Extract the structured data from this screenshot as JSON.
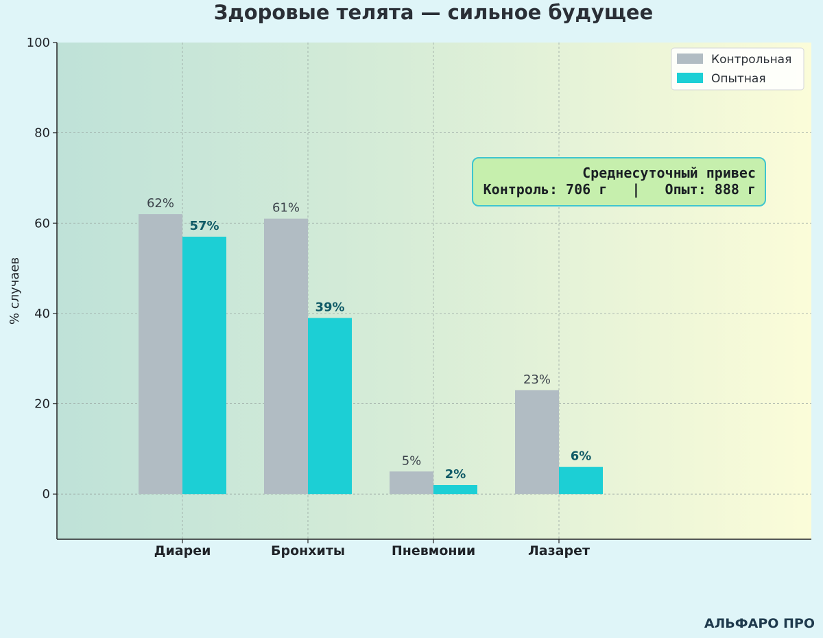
{
  "chart_data": {
    "type": "bar",
    "title": "Здоровые телята — сильное будущее",
    "ylabel": "% случаев",
    "xlabel": "",
    "ylim": [
      -10,
      100
    ],
    "yticks": [
      0,
      20,
      40,
      60,
      80,
      100
    ],
    "grid": true,
    "legend_position": "top-right",
    "categories": [
      "Диареи",
      "Бронхиты",
      "Пневмонии",
      "Лазарет"
    ],
    "series": [
      {
        "name": "Контрольная",
        "values": [
          62,
          61,
          5,
          23
        ],
        "labels": [
          "62%",
          "61%",
          "5%",
          "23%"
        ],
        "color": "#b1bcc3"
      },
      {
        "name": "Опытная",
        "values": [
          57,
          39,
          2,
          6
        ],
        "labels": [
          "57%",
          "39%",
          "2%",
          "6%"
        ],
        "color": "#1ccfd5"
      }
    ],
    "annotation": {
      "line1": "Среднесуточный привес",
      "line2": "Контроль: 706 г   |   Опыт: 888 г"
    }
  },
  "brand": "АЛЬФАРО ПРО"
}
